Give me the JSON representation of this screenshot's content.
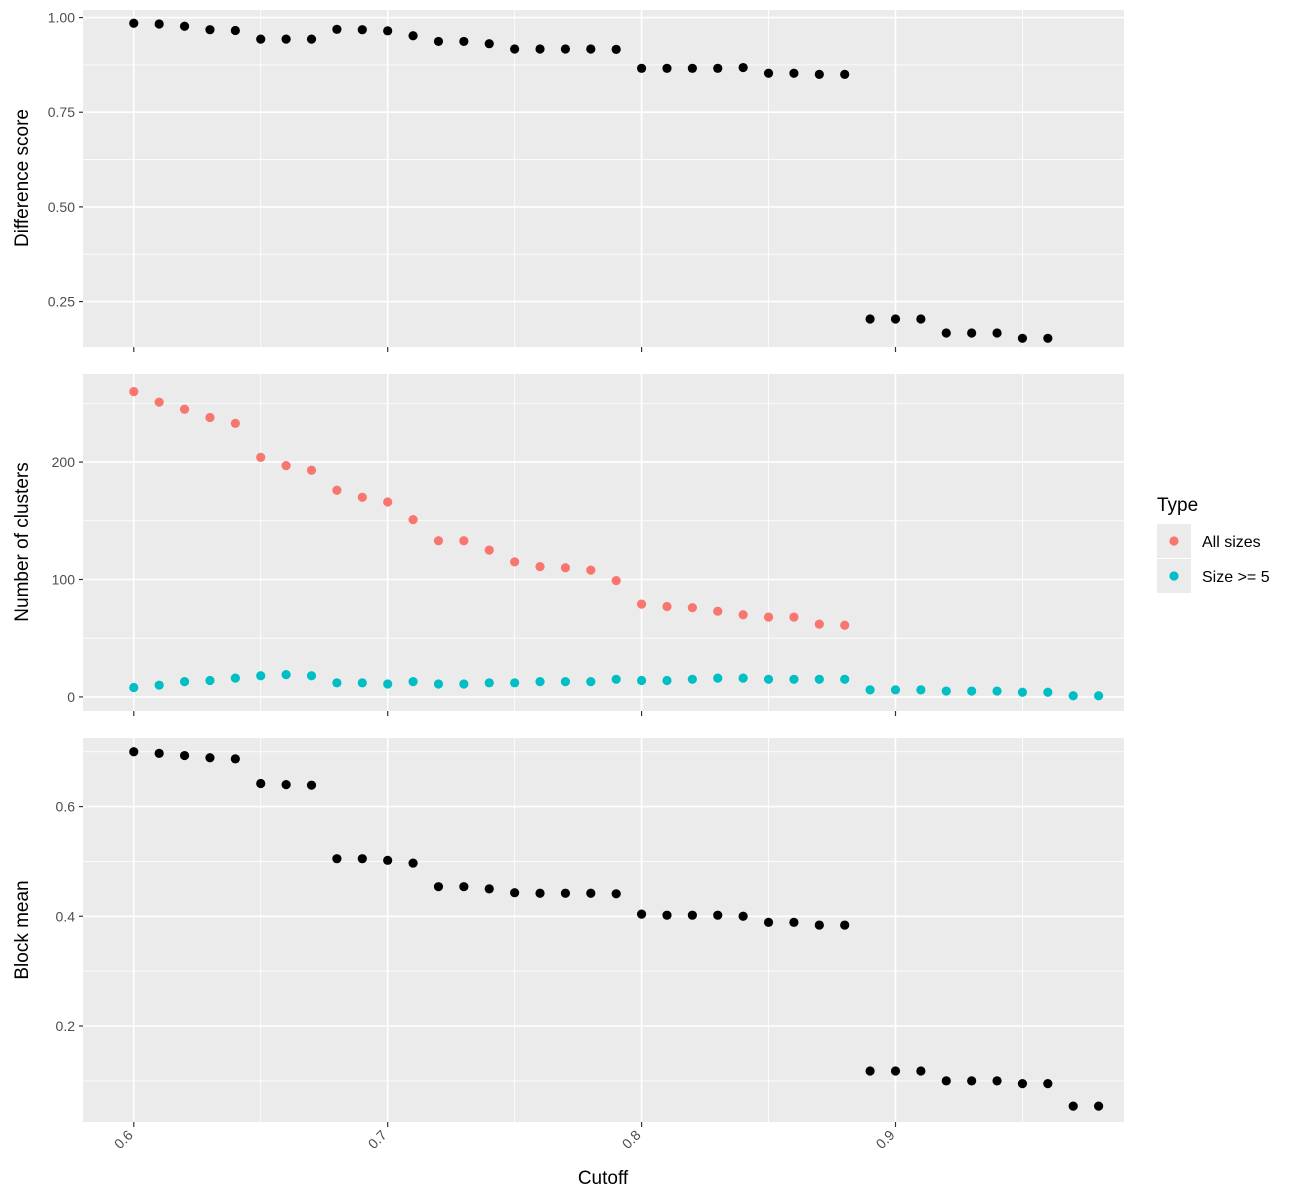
{
  "chart_data": [
    {
      "type": "scatter",
      "panel": "top",
      "ylabel": "Difference score",
      "xlim": [
        0.58,
        0.99
      ],
      "ylim": [
        0.13,
        1.02
      ],
      "yticks": [
        0.25,
        0.5,
        0.75,
        1.0
      ],
      "ytick_labels": [
        "0.25",
        "0.50",
        "0.75",
        "1.00"
      ],
      "grid": true,
      "series": [
        {
          "color": "#000000",
          "x": [
            0.6,
            0.61,
            0.62,
            0.63,
            0.64,
            0.65,
            0.66,
            0.67,
            0.68,
            0.69,
            0.7,
            0.71,
            0.72,
            0.73,
            0.74,
            0.75,
            0.76,
            0.77,
            0.78,
            0.79,
            0.8,
            0.81,
            0.82,
            0.83,
            0.84,
            0.85,
            0.86,
            0.87,
            0.88,
            0.89,
            0.9,
            0.91,
            0.92,
            0.93,
            0.94,
            0.95,
            0.96
          ],
          "y": [
            0.985,
            0.983,
            0.977,
            0.968,
            0.966,
            0.943,
            0.943,
            0.943,
            0.969,
            0.968,
            0.965,
            0.952,
            0.937,
            0.937,
            0.931,
            0.917,
            0.917,
            0.917,
            0.917,
            0.916,
            0.866,
            0.866,
            0.866,
            0.866,
            0.868,
            0.853,
            0.853,
            0.85,
            0.85,
            0.204,
            0.204,
            0.204,
            0.167,
            0.167,
            0.167,
            0.153,
            0.153
          ]
        }
      ]
    },
    {
      "type": "scatter",
      "panel": "middle",
      "ylabel": "Number of clusters",
      "xlim": [
        0.58,
        0.99
      ],
      "ylim": [
        -12,
        275
      ],
      "yticks": [
        0,
        100,
        200
      ],
      "ytick_labels": [
        "0",
        "100",
        "200"
      ],
      "grid": true,
      "series": [
        {
          "name": "All sizes",
          "color": "#F8766D",
          "x": [
            0.6,
            0.61,
            0.62,
            0.63,
            0.64,
            0.65,
            0.66,
            0.67,
            0.68,
            0.69,
            0.7,
            0.71,
            0.72,
            0.73,
            0.74,
            0.75,
            0.76,
            0.77,
            0.78,
            0.79,
            0.8,
            0.81,
            0.82,
            0.83,
            0.84,
            0.85,
            0.86,
            0.87,
            0.88
          ],
          "y": [
            260,
            251,
            245,
            238,
            233,
            204,
            197,
            193,
            176,
            170,
            166,
            151,
            133,
            133,
            125,
            115,
            111,
            110,
            108,
            99,
            79,
            77,
            76,
            73,
            70,
            68,
            68,
            62,
            61
          ]
        },
        {
          "name": "Size >= 5",
          "color": "#00BFC4",
          "x": [
            0.6,
            0.61,
            0.62,
            0.63,
            0.64,
            0.65,
            0.66,
            0.67,
            0.68,
            0.69,
            0.7,
            0.71,
            0.72,
            0.73,
            0.74,
            0.75,
            0.76,
            0.77,
            0.78,
            0.79,
            0.8,
            0.81,
            0.82,
            0.83,
            0.84,
            0.85,
            0.86,
            0.87,
            0.88,
            0.89,
            0.9,
            0.91,
            0.92,
            0.93,
            0.94,
            0.95,
            0.96,
            0.97,
            0.98
          ],
          "y": [
            8,
            10,
            13,
            14,
            16,
            18,
            19,
            18,
            12,
            12,
            11,
            13,
            11,
            11,
            12,
            12,
            13,
            13,
            13,
            15,
            14,
            14,
            15,
            16,
            16,
            15,
            15,
            15,
            15,
            6,
            6,
            6,
            5,
            5,
            5,
            4,
            4,
            1,
            1
          ]
        }
      ]
    },
    {
      "type": "scatter",
      "panel": "bottom",
      "ylabel": "Block mean",
      "xlabel": "Cutoff",
      "xlim": [
        0.58,
        0.99
      ],
      "ylim": [
        0.025,
        0.725
      ],
      "yticks": [
        0.2,
        0.4,
        0.6
      ],
      "ytick_labels": [
        "0.2",
        "0.4",
        "0.6"
      ],
      "xticks": [
        0.6,
        0.7,
        0.8,
        0.9
      ],
      "xtick_labels": [
        "0.6",
        "0.7",
        "0.8",
        "0.9"
      ],
      "grid": true,
      "series": [
        {
          "color": "#000000",
          "x": [
            0.6,
            0.61,
            0.62,
            0.63,
            0.64,
            0.65,
            0.66,
            0.67,
            0.68,
            0.69,
            0.7,
            0.71,
            0.72,
            0.73,
            0.74,
            0.75,
            0.76,
            0.77,
            0.78,
            0.79,
            0.8,
            0.81,
            0.82,
            0.83,
            0.84,
            0.85,
            0.86,
            0.87,
            0.88,
            0.89,
            0.9,
            0.91,
            0.92,
            0.93,
            0.94,
            0.95,
            0.96,
            0.97,
            0.98
          ],
          "y": [
            0.7,
            0.697,
            0.693,
            0.689,
            0.687,
            0.642,
            0.64,
            0.639,
            0.505,
            0.505,
            0.502,
            0.497,
            0.454,
            0.454,
            0.45,
            0.443,
            0.442,
            0.442,
            0.442,
            0.441,
            0.404,
            0.402,
            0.402,
            0.402,
            0.4,
            0.389,
            0.389,
            0.384,
            0.384,
            0.118,
            0.118,
            0.118,
            0.1,
            0.1,
            0.1,
            0.095,
            0.095,
            0.054,
            0.054
          ]
        }
      ]
    }
  ],
  "legend": {
    "title": "Type",
    "items": [
      {
        "label": "All sizes",
        "color": "#F8766D"
      },
      {
        "label": "Size >= 5",
        "color": "#00BFC4"
      }
    ]
  },
  "panel_background": "#EBEBEB",
  "grid_color": "#FFFFFF"
}
